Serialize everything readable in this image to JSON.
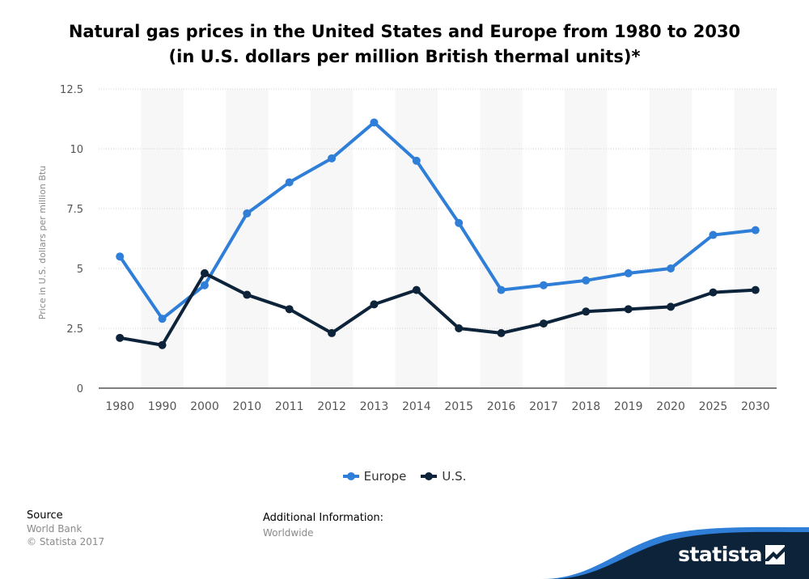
{
  "title_line1": "Natural gas prices in the United States and Europe from 1980 to 2030",
  "title_line2": "(in U.S. dollars per million British thermal units)*",
  "footer": {
    "source_label": "Source",
    "source_value": "World Bank",
    "copyright": "© Statista 2017",
    "additional_label": "Additional Information:",
    "additional_value": "Worldwide",
    "brand": "statista"
  },
  "colors": {
    "europe": "#2f7ed8",
    "us": "#0d233a",
    "band": "#f7f7f7",
    "grid": "#d0d0d0",
    "brand_dark": "#0d233a",
    "brand_blue": "#2f7ed8"
  },
  "chart_data": {
    "type": "line",
    "title": "Natural gas prices in the United States and Europe from 1980 to 2030 (in U.S. dollars per million British thermal units)*",
    "xlabel": "",
    "ylabel": "Price in U.S. dollars per million Btu",
    "categories": [
      "1980",
      "1990",
      "2000",
      "2010",
      "2011",
      "2012",
      "2013",
      "2014",
      "2015",
      "2016",
      "2017",
      "2018",
      "2019",
      "2020",
      "2025",
      "2030"
    ],
    "ylim": [
      0,
      12.5
    ],
    "yticks": [
      0,
      2.5,
      5,
      7.5,
      10,
      12.5
    ],
    "ytick_labels": [
      "0",
      "2.5",
      "5",
      "7.5",
      "10",
      "12.5"
    ],
    "grid": true,
    "legend_position": "bottom-center",
    "series": [
      {
        "name": "Europe",
        "values": [
          5.5,
          2.9,
          4.3,
          7.3,
          8.6,
          9.6,
          11.1,
          9.5,
          6.9,
          4.1,
          4.3,
          4.5,
          4.8,
          5.0,
          6.4,
          6.6
        ]
      },
      {
        "name": "U.S.",
        "values": [
          2.1,
          1.8,
          4.8,
          3.9,
          3.3,
          2.3,
          3.5,
          4.1,
          2.5,
          2.3,
          2.7,
          3.2,
          3.3,
          3.4,
          4.0,
          4.1
        ]
      }
    ]
  }
}
